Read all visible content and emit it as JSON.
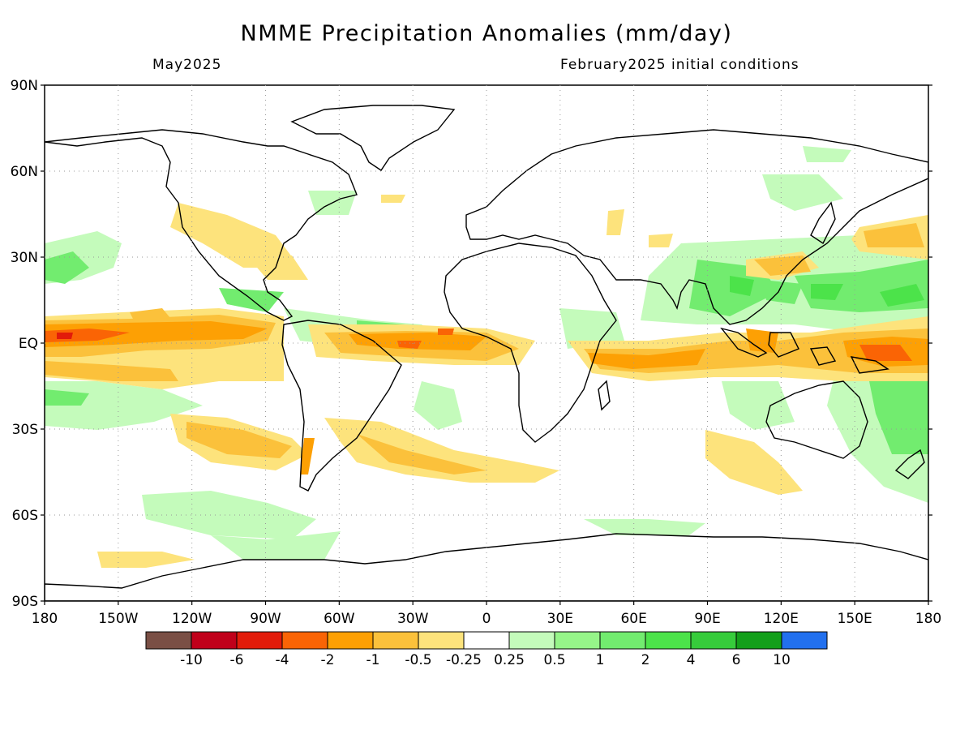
{
  "title": "NMME Precipitation Anomalies (mm/day)",
  "subtitle_left": "May2025",
  "subtitle_right": "February2025 initial conditions",
  "lat_labels": [
    "90N",
    "60N",
    "30N",
    "EQ",
    "30S",
    "60S",
    "90S"
  ],
  "lon_labels": [
    "180",
    "150W",
    "120W",
    "90W",
    "60W",
    "30W",
    "0",
    "30E",
    "60E",
    "90E",
    "120E",
    "150E",
    "180"
  ],
  "colorbar": {
    "colors": [
      "#7a4f45",
      "#c0001a",
      "#e21b0a",
      "#fa6405",
      "#fda004",
      "#fbc13b",
      "#fde37c",
      "#ffffff",
      "#c4fbbb",
      "#96f589",
      "#72ec6f",
      "#4ce34a",
      "#36cc3b",
      "#139f1a",
      "#2270ee"
    ],
    "labels": [
      "-10",
      "-6",
      "-4",
      "-2",
      "-1",
      "-0.5",
      "-0.25",
      "0.25",
      "0.5",
      "1",
      "2",
      "4",
      "6",
      "10"
    ]
  }
}
